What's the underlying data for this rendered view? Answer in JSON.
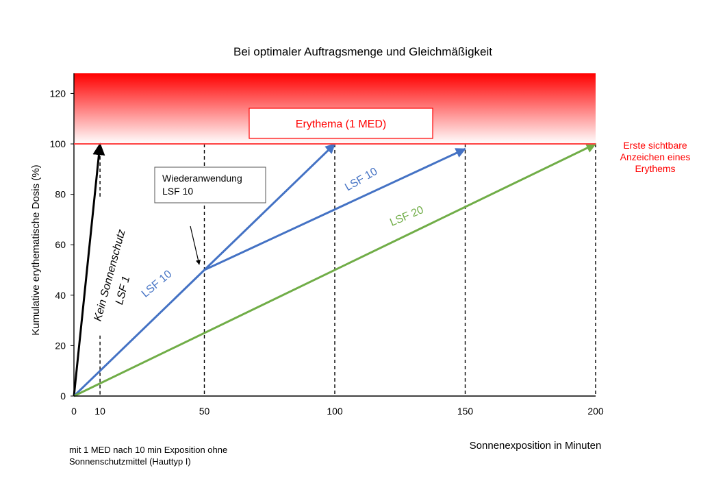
{
  "chart_data": {
    "type": "line",
    "title": "Bei optimaler Auftragsmenge und Gleichmäßigkeit",
    "xlabel": "Sonnenexposition in Minuten",
    "ylabel": "Kumulative erythematische Dosis (%)",
    "xlim": [
      0,
      200
    ],
    "ylim": [
      0,
      128
    ],
    "x_ticks": [
      0,
      10,
      50,
      100,
      150,
      200
    ],
    "y_ticks": [
      0,
      20,
      40,
      60,
      80,
      100,
      120
    ],
    "grid": false,
    "series": [
      {
        "name": "Kein Sonnenschutz LSF 1",
        "color": "#000000",
        "x": [
          0,
          10
        ],
        "y": [
          0,
          100
        ]
      },
      {
        "name": "LSF 10",
        "color": "#4472c4",
        "x": [
          0,
          50,
          100
        ],
        "y": [
          0,
          50,
          100
        ]
      },
      {
        "name": "LSF 10",
        "color": "#4472c4",
        "x": [
          50,
          150
        ],
        "y": [
          50,
          98
        ]
      },
      {
        "name": "LSF 20",
        "color": "#70ad47",
        "x": [
          0,
          200
        ],
        "y": [
          0,
          100
        ]
      }
    ],
    "erythema_threshold": 100,
    "dashed_x": [
      10,
      50,
      100,
      150,
      200
    ],
    "annotations": {
      "erythema_box": "Erythema (1 MED)",
      "erythema_right_line1": "Erste sichtbare",
      "erythema_right_line2": "Anzeichen eines",
      "erythema_right_line3": "Erythems",
      "reapplication_line1": "Wiederanwendung",
      "reapplication_line2": "LSF 10",
      "no_protection_line1": "Kein Sonnenschutz",
      "no_protection_line2": "LSF 1",
      "lsf10_first": "LSF 10",
      "lsf10_second": "LSF 10",
      "lsf20": "LSF 20",
      "footnote_line1": "mit 1 MED nach 10 min Exposition ohne",
      "footnote_line2": "Sonnenschutzmittel (Hauttyp I)"
    },
    "colors": {
      "threshold": "#ff4040",
      "band_top": "#ff0000",
      "lsf10": "#4472c4",
      "lsf20": "#70ad47",
      "no_protection": "#000000"
    }
  }
}
